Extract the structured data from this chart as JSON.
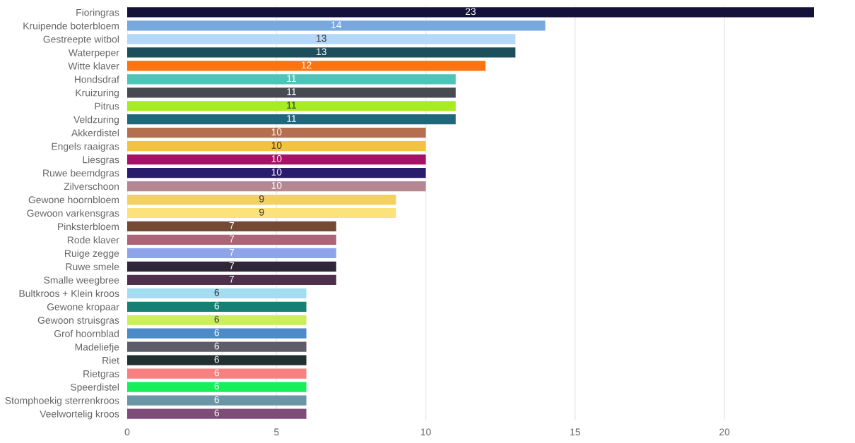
{
  "chart_data": {
    "type": "bar",
    "orientation": "horizontal",
    "categories": [
      "Fioringras",
      "Kruipende boterbloem",
      "Gestreepte witbol",
      "Waterpeper",
      "Witte klaver",
      "Hondsdraf",
      "Kruizuring",
      "Pitrus",
      "Veldzuring",
      "Akkerdistel",
      "Engels raaigras",
      "Liesgras",
      "Ruwe beemdgras",
      "Zilverschoon",
      "Gewone hoornbloem",
      "Gewoon varkensgras",
      "Pinksterbloem",
      "Rode klaver",
      "Ruige zegge",
      "Ruwe smele",
      "Smalle weegbree",
      "Bultkroos + Klein kroos",
      "Gewone kropaar",
      "Gewoon struisgras",
      "Grof hoornblad",
      "Madeliefje",
      "Riet",
      "Rietgras",
      "Speerdistel",
      "Stomphoekig sterrenkroos",
      "Veelwortelig kroos"
    ],
    "values": [
      23,
      14,
      13,
      13,
      12,
      11,
      11,
      11,
      11,
      10,
      10,
      10,
      10,
      10,
      9,
      9,
      7,
      7,
      7,
      7,
      7,
      6,
      6,
      6,
      6,
      6,
      6,
      6,
      6,
      6,
      6
    ],
    "colors": [
      "#14123a",
      "#78a8de",
      "#b4d8fa",
      "#1d4e5c",
      "#fd730f",
      "#4cc4b8",
      "#474b51",
      "#a6ec20",
      "#20677c",
      "#b4704e",
      "#f2c33e",
      "#a51167",
      "#2a1c6c",
      "#b58790",
      "#f2d160",
      "#fbe27a",
      "#744a35",
      "#ab6576",
      "#8ea4e8",
      "#2f2737",
      "#4e2f4c",
      "#a3def0",
      "#168074",
      "#cbee5b",
      "#4c8ac8",
      "#5c5d68",
      "#21312f",
      "#f98081",
      "#15ef5a",
      "#6a96a6",
      "#7d4d78"
    ],
    "data_labels": true,
    "xlim": [
      0,
      23
    ],
    "xticks": [
      0,
      5,
      10,
      15,
      20
    ],
    "grid": "x"
  }
}
